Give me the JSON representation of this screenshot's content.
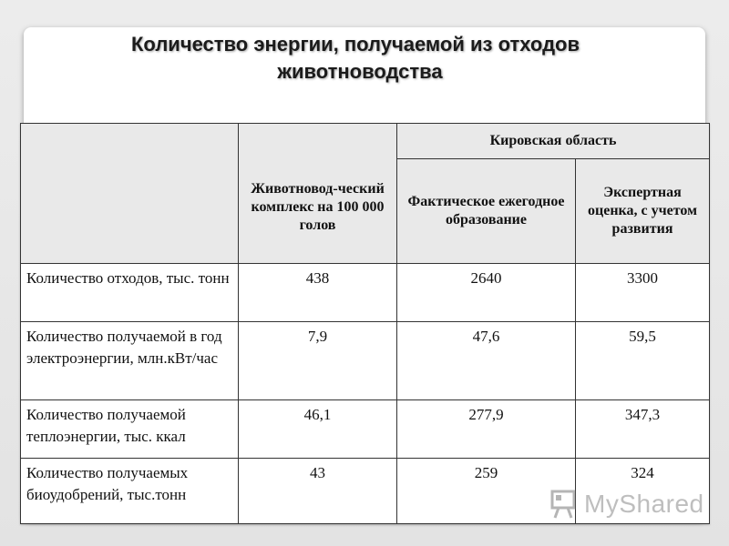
{
  "slide": {
    "title_line1": "Количество энергии, получаемой из отходов",
    "title_line2": "животноводства"
  },
  "table": {
    "col_complex": "Животновод-ческий комплекс на  100 000 голов",
    "col_region": "Кировская область",
    "col_actual": "Фактическое ежегодное образование",
    "col_expert": "Экспертная оценка, с учетом развития",
    "rows": [
      {
        "label": "Количество  отходов, тыс. тонн",
        "complex": "438",
        "actual": "2640",
        "expert": "3300"
      },
      {
        "label": "Количество получаемой в год электроэнергии, млн.кВт/час",
        "complex": "7,9",
        "actual": "47,6",
        "expert": "59,5"
      },
      {
        "label": "Количество получаемой теплоэнергии, тыс. ккал",
        "complex": "46,1",
        "actual": "277,9",
        "expert": "347,3"
      },
      {
        "label": "Количество получаемых биоудобрений, тыс.тонн",
        "complex": "43",
        "actual": "259",
        "expert": "324"
      }
    ]
  },
  "watermark": {
    "text": "MyShared",
    "icon": "presentation-board-icon"
  }
}
